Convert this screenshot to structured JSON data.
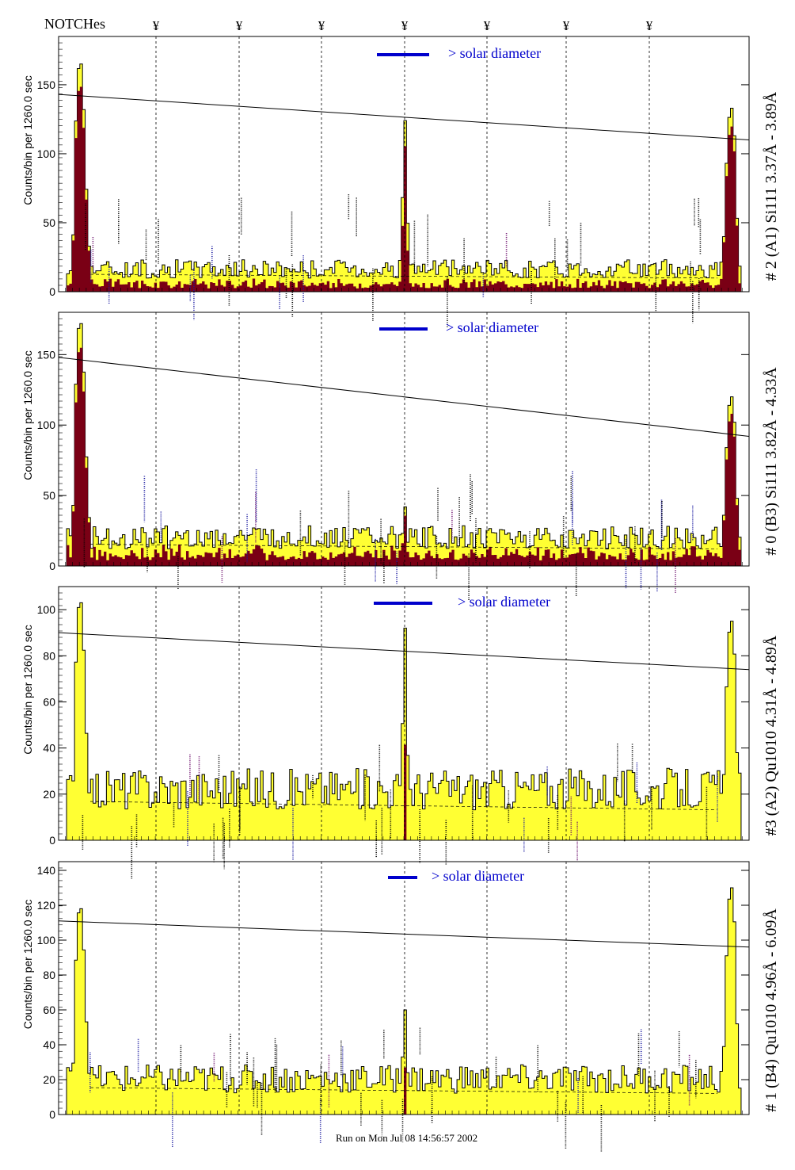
{
  "header": {
    "notches_label": "NOTCHes",
    "notch_marker": "¥"
  },
  "footer": {
    "run_text": "Run on Mon Jul 08 14:56:57 2002"
  },
  "colors": {
    "total_fill": "#ffff33",
    "signal_fill": "#7a0015",
    "legend_bar": "#0000cc",
    "legend_text": "#0000cc",
    "axis": "#000000",
    "annotation_blue": "#1a1aa0",
    "annotation_purple": "#6a0a6a"
  },
  "chart_data": [
    {
      "type": "histogram",
      "title": "# 2 (A1) Si111 3.37Å - 3.89Å",
      "ylabel": "Counts/bin per 1260.0 sec",
      "ylim": [
        0,
        185
      ],
      "yticks": [
        0,
        50,
        100,
        150
      ],
      "legend": "> solar diameter",
      "trend_line": [
        143,
        110
      ],
      "peak_values": [
        165,
        124,
        133
      ],
      "baseline_total": 18,
      "baseline_signal": 6,
      "has_signal_fill": true
    },
    {
      "type": "histogram",
      "title": "# 0 (B3) Si111 3.82Å - 4.33Å",
      "ylabel": "Counts/bin per 1260.0 sec",
      "ylim": [
        0,
        180
      ],
      "yticks": [
        0,
        50,
        100,
        150
      ],
      "legend": "> solar diameter",
      "trend_line": [
        148,
        92
      ],
      "peak_values": [
        172,
        42,
        120
      ],
      "baseline_total": 22,
      "baseline_signal": 10,
      "has_signal_fill": true
    },
    {
      "type": "histogram",
      "title": "#3 (A2) Qu1010 4.31Å - 4.89Å",
      "ylabel": "Counts/bin per 1260.0 sec",
      "ylim": [
        0,
        110
      ],
      "yticks": [
        0,
        20,
        40,
        60,
        80,
        100
      ],
      "legend": "> solar diameter",
      "trend_line": [
        90,
        74
      ],
      "peak_values": [
        103,
        92,
        95
      ],
      "baseline_total": 24,
      "baseline_signal": 0,
      "has_signal_fill": false
    },
    {
      "type": "histogram",
      "title": "# 1 (B4) Qu1010 4.96Å - 6.09Å",
      "ylabel": "Counts/bin per 1260.0 sec",
      "ylim": [
        0,
        145
      ],
      "yticks": [
        0,
        20,
        40,
        60,
        80,
        100,
        120,
        140
      ],
      "legend": "> solar diameter",
      "trend_line": [
        111,
        96
      ],
      "peak_values": [
        118,
        60,
        130
      ],
      "baseline_total": 22,
      "baseline_signal": 0,
      "has_signal_fill": false
    }
  ]
}
